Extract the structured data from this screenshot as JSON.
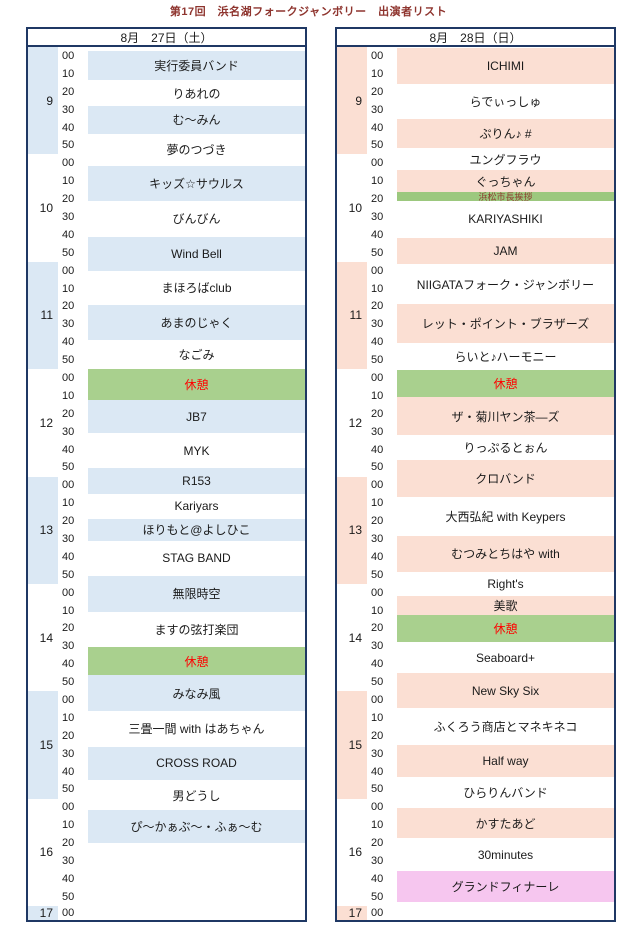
{
  "title": "第17回　浜名湖フォークジャンボリー　出演者リスト",
  "colors": {
    "border": "#1f3864",
    "title_text": "#8e342e",
    "body_text": "#1a1a1a",
    "band_white": "#ffffff",
    "band_break": "#a9d08e",
    "band_greeting": "#9cc87e",
    "band_finale": "#f6c6ef",
    "break_text": "#ff0000",
    "greeting_text": "#8e3b2e"
  },
  "days": [
    {
      "id": "sat",
      "header": "8月　27日（土）",
      "accent_color": "#dbe8f4",
      "hours": [
        "9",
        "10",
        "11",
        "12",
        "13",
        "14",
        "15",
        "16"
      ],
      "final_hour": "17",
      "minute_labels": [
        "00",
        "10",
        "20",
        "30",
        "40",
        "50"
      ],
      "final_minute": "00",
      "offset_rows": 0.2,
      "slots": [
        {
          "label": "実行委員バンド",
          "type": "accent",
          "rows": 1.65
        },
        {
          "label": "りあれの",
          "type": "plain",
          "rows": 1.45
        },
        {
          "label": "む～みん",
          "type": "accent",
          "rows": 1.55
        },
        {
          "label": "夢のつづき",
          "type": "plain",
          "rows": 1.8
        },
        {
          "label": "キッズ☆サウルス",
          "type": "accent",
          "rows": 1.95
        },
        {
          "label": "びんびん",
          "type": "plain",
          "rows": 2.0
        },
        {
          "label": "Wind Bell",
          "type": "accent",
          "rows": 1.9
        },
        {
          "label": "まほろばclub",
          "type": "plain",
          "rows": 1.9
        },
        {
          "label": "あまのじゃく",
          "type": "accent",
          "rows": 1.95
        },
        {
          "label": "なごみ",
          "type": "plain",
          "rows": 1.65
        },
        {
          "label": "休憩",
          "type": "break",
          "rows": 1.75
        },
        {
          "label": "JB7",
          "type": "accent",
          "rows": 1.8
        },
        {
          "label": "MYK",
          "type": "plain",
          "rows": 2.0
        },
        {
          "label": "R153",
          "type": "accent",
          "rows": 1.4
        },
        {
          "label": "Kariyars",
          "type": "plain",
          "rows": 1.4
        },
        {
          "label": "ほりもと@よしひこ",
          "type": "accent",
          "rows": 1.25
        },
        {
          "label": "STAG BAND",
          "type": "plain",
          "rows": 1.95
        },
        {
          "label": "無限時空",
          "type": "accent",
          "rows": 2.0
        },
        {
          "label": "ますの弦打楽団",
          "type": "plain",
          "rows": 2.0
        },
        {
          "label": "休憩",
          "type": "break",
          "rows": 1.55
        },
        {
          "label": "みなみ風",
          "type": "accent",
          "rows": 2.0
        },
        {
          "label": "三畳一間 with はあちゃん",
          "type": "plain",
          "rows": 2.0
        },
        {
          "label": "CROSS ROAD",
          "type": "accent",
          "rows": 1.85
        },
        {
          "label": "男どうし",
          "type": "plain",
          "rows": 1.7
        },
        {
          "label": "ぴ～かぁぶ～・ふぁ～む",
          "type": "accent",
          "rows": 1.85
        }
      ]
    },
    {
      "id": "sun",
      "header": "8月　28日（日）",
      "accent_color": "#fbdfd3",
      "hours": [
        "9",
        "10",
        "11",
        "12",
        "13",
        "14",
        "15",
        "16"
      ],
      "final_hour": "17",
      "minute_labels": [
        "00",
        "10",
        "20",
        "30",
        "40",
        "50"
      ],
      "final_minute": "00",
      "offset_rows": 0.05,
      "slots": [
        {
          "label": "ICHIMI",
          "type": "accent",
          "rows": 2.0
        },
        {
          "label": "らでぃっしゅ",
          "type": "plain",
          "rows": 1.95
        },
        {
          "label": "ぷりん♪ #",
          "type": "accent",
          "rows": 1.65
        },
        {
          "label": "ユングフラウ",
          "type": "plain",
          "rows": 1.25
        },
        {
          "label": "ぐっちゃん",
          "type": "accent",
          "rows": 1.2
        },
        {
          "label": "浜松市長挨拶",
          "type": "greeting",
          "rows": 0.5
        },
        {
          "label": "KARIYASHIKI",
          "type": "plain",
          "rows": 2.05
        },
        {
          "label": "JAM",
          "type": "accent",
          "rows": 1.5
        },
        {
          "label": "NIIGATAフォーク・ジャンボリー",
          "type": "plain",
          "rows": 2.2
        },
        {
          "label": "レット・ポイント・ブラザーズ",
          "type": "accent",
          "rows": 2.2
        },
        {
          "label": "らいと♪ハーモニー",
          "type": "plain",
          "rows": 1.5
        },
        {
          "label": "休憩",
          "type": "break",
          "rows": 1.5
        },
        {
          "label": "ザ・菊川ヤン茶―ズ",
          "type": "accent",
          "rows": 2.15
        },
        {
          "label": "りっぷるとぉん",
          "type": "plain",
          "rows": 1.4
        },
        {
          "label": "クロバンド",
          "type": "accent",
          "rows": 2.05
        },
        {
          "label": "大西弘紀 with Keypers",
          "type": "plain",
          "rows": 2.15
        },
        {
          "label": "むつみとちはや with",
          "type": "accent",
          "rows": 2.05
        },
        {
          "label": "Right's",
          "type": "plain",
          "rows": 1.3
        },
        {
          "label": "美歌",
          "type": "accent",
          "rows": 1.1
        },
        {
          "label": "休憩",
          "type": "break",
          "rows": 1.5
        },
        {
          "label": "Seaboard+",
          "type": "plain",
          "rows": 1.75
        },
        {
          "label": "New Sky Six",
          "type": "accent",
          "rows": 1.95
        },
        {
          "label": "ふくろう商店とマネキネコ",
          "type": "plain",
          "rows": 2.05
        },
        {
          "label": "Half way",
          "type": "accent",
          "rows": 1.8
        },
        {
          "label": "ひらりんバンド",
          "type": "plain",
          "rows": 1.75
        },
        {
          "label": "かすたあど",
          "type": "accent",
          "rows": 1.65
        },
        {
          "label": "30minutes",
          "type": "plain",
          "rows": 1.85
        },
        {
          "label": "グランドフィナーレ",
          "type": "finale",
          "rows": 1.7
        }
      ]
    }
  ]
}
